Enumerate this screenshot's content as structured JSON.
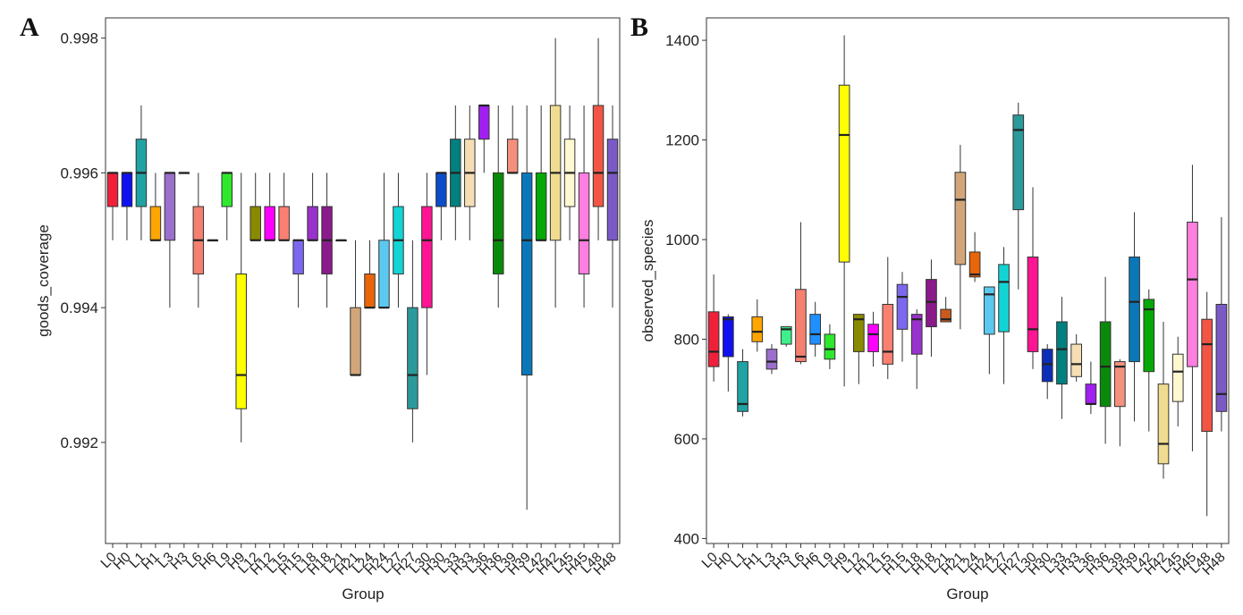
{
  "chart_data": [
    {
      "type": "boxplot",
      "panel_label": "A",
      "xlabel": "Group",
      "ylabel": "goods_coverage",
      "ylim": [
        0.9905,
        0.9983
      ],
      "yticks": [
        0.992,
        0.994,
        0.996,
        0.998
      ],
      "ytick_labels": [
        "0.992",
        "0.994",
        "0.996",
        "0.998"
      ],
      "categories": [
        "L0",
        "H0",
        "L1",
        "H1",
        "L3",
        "H3",
        "L6",
        "H6",
        "L9",
        "H9",
        "L12",
        "H12",
        "L15",
        "H15",
        "L18",
        "H18",
        "L21",
        "H21",
        "L24",
        "H24",
        "L27",
        "H27",
        "L30",
        "H30",
        "L33",
        "H33",
        "L36",
        "H36",
        "L39",
        "H39",
        "L42",
        "H42",
        "L45",
        "H45",
        "L48",
        "H48"
      ],
      "colors": [
        "#F0203A",
        "#1010F0",
        "#1FA3A3",
        "#FFA500",
        "#9B6FCC",
        "#F2F0A0",
        "#F58070",
        "#F5DEB3",
        "#2EE82E",
        "#FFFF00",
        "#8A8A00",
        "#FF00FF",
        "#FA8072",
        "#7B68EE",
        "#9932CC",
        "#8B1A8B",
        "#EEE8AA",
        "#D2A679",
        "#E8650A",
        "#5BC8F0",
        "#12D4D4",
        "#2C9A9A",
        "#FF1493",
        "#0B4DC8",
        "#00807F",
        "#F5DEB3",
        "#A020F0",
        "#0A8A0A",
        "#F4907C",
        "#0A78B8",
        "#06A806",
        "#F0DC90",
        "#FFF8D0",
        "#FF7FE0",
        "#F25545",
        "#7B5AC8"
      ],
      "boxes": [
        {
          "min": 0.995,
          "q1": 0.9955,
          "median": 0.996,
          "q3": 0.996,
          "max": 0.996
        },
        {
          "min": 0.995,
          "q1": 0.9955,
          "median": 0.996,
          "q3": 0.996,
          "max": 0.996
        },
        {
          "min": 0.995,
          "q1": 0.9955,
          "median": 0.996,
          "q3": 0.9965,
          "max": 0.997
        },
        {
          "min": 0.995,
          "q1": 0.995,
          "median": 0.995,
          "q3": 0.9955,
          "max": 0.996
        },
        {
          "min": 0.994,
          "q1": 0.995,
          "median": 0.996,
          "q3": 0.996,
          "max": 0.996
        },
        {
          "min": 0.996,
          "q1": 0.996,
          "median": 0.996,
          "q3": 0.996,
          "max": 0.996
        },
        {
          "min": 0.994,
          "q1": 0.9945,
          "median": 0.995,
          "q3": 0.9955,
          "max": 0.996
        },
        {
          "min": 0.995,
          "q1": 0.995,
          "median": 0.995,
          "q3": 0.995,
          "max": 0.995
        },
        {
          "min": 0.995,
          "q1": 0.9955,
          "median": 0.996,
          "q3": 0.996,
          "max": 0.996
        },
        {
          "min": 0.992,
          "q1": 0.9925,
          "median": 0.993,
          "q3": 0.9945,
          "max": 0.996
        },
        {
          "min": 0.995,
          "q1": 0.995,
          "median": 0.995,
          "q3": 0.9955,
          "max": 0.996
        },
        {
          "min": 0.995,
          "q1": 0.995,
          "median": 0.995,
          "q3": 0.9955,
          "max": 0.996
        },
        {
          "min": 0.995,
          "q1": 0.995,
          "median": 0.995,
          "q3": 0.9955,
          "max": 0.996
        },
        {
          "min": 0.994,
          "q1": 0.9945,
          "median": 0.995,
          "q3": 0.995,
          "max": 0.995
        },
        {
          "min": 0.995,
          "q1": 0.995,
          "median": 0.995,
          "q3": 0.9955,
          "max": 0.996
        },
        {
          "min": 0.994,
          "q1": 0.9945,
          "median": 0.995,
          "q3": 0.9955,
          "max": 0.996
        },
        {
          "min": 0.995,
          "q1": 0.995,
          "median": 0.995,
          "q3": 0.995,
          "max": 0.995
        },
        {
          "min": 0.993,
          "q1": 0.993,
          "median": 0.993,
          "q3": 0.994,
          "max": 0.995
        },
        {
          "min": 0.994,
          "q1": 0.994,
          "median": 0.994,
          "q3": 0.9945,
          "max": 0.995
        },
        {
          "min": 0.994,
          "q1": 0.994,
          "median": 0.994,
          "q3": 0.995,
          "max": 0.996
        },
        {
          "min": 0.994,
          "q1": 0.9945,
          "median": 0.995,
          "q3": 0.9955,
          "max": 0.996
        },
        {
          "min": 0.992,
          "q1": 0.9925,
          "median": 0.993,
          "q3": 0.994,
          "max": 0.995
        },
        {
          "min": 0.993,
          "q1": 0.994,
          "median": 0.995,
          "q3": 0.9955,
          "max": 0.996
        },
        {
          "min": 0.995,
          "q1": 0.9955,
          "median": 0.996,
          "q3": 0.996,
          "max": 0.996
        },
        {
          "min": 0.995,
          "q1": 0.9955,
          "median": 0.996,
          "q3": 0.9965,
          "max": 0.997
        },
        {
          "min": 0.995,
          "q1": 0.9955,
          "median": 0.996,
          "q3": 0.9965,
          "max": 0.997
        },
        {
          "min": 0.996,
          "q1": 0.9965,
          "median": 0.997,
          "q3": 0.997,
          "max": 0.997
        },
        {
          "min": 0.994,
          "q1": 0.9945,
          "median": 0.995,
          "q3": 0.996,
          "max": 0.997
        },
        {
          "min": 0.996,
          "q1": 0.996,
          "median": 0.996,
          "q3": 0.9965,
          "max": 0.997
        },
        {
          "min": 0.991,
          "q1": 0.993,
          "median": 0.995,
          "q3": 0.996,
          "max": 0.997
        },
        {
          "min": 0.995,
          "q1": 0.995,
          "median": 0.995,
          "q3": 0.996,
          "max": 0.997
        },
        {
          "min": 0.994,
          "q1": 0.995,
          "median": 0.996,
          "q3": 0.997,
          "max": 0.998
        },
        {
          "min": 0.995,
          "q1": 0.9955,
          "median": 0.996,
          "q3": 0.9965,
          "max": 0.997
        },
        {
          "min": 0.994,
          "q1": 0.9945,
          "median": 0.995,
          "q3": 0.996,
          "max": 0.997
        },
        {
          "min": 0.995,
          "q1": 0.9955,
          "median": 0.996,
          "q3": 0.997,
          "max": 0.998
        },
        {
          "min": 0.994,
          "q1": 0.995,
          "median": 0.996,
          "q3": 0.9965,
          "max": 0.997
        }
      ]
    },
    {
      "type": "boxplot",
      "panel_label": "B",
      "xlabel": "Group",
      "ylabel": "observed_species",
      "ylim": [
        390,
        1445
      ],
      "yticks": [
        400,
        600,
        800,
        1000,
        1200,
        1400
      ],
      "ytick_labels": [
        "400",
        "600",
        "800",
        "1000",
        "1200",
        "1400"
      ],
      "categories": [
        "L0",
        "H0",
        "L1",
        "H1",
        "L3",
        "H3",
        "L6",
        "H6",
        "L9",
        "H9",
        "L12",
        "H12",
        "L15",
        "H15",
        "L18",
        "H18",
        "L21",
        "H21",
        "L24",
        "H24",
        "L27",
        "H27",
        "L30",
        "H30",
        "L33",
        "H33",
        "L36",
        "H36",
        "L39",
        "H39",
        "L42",
        "H42",
        "L45",
        "H45",
        "L48",
        "H48"
      ],
      "colors": [
        "#F0203A",
        "#1010F0",
        "#1FA3A3",
        "#FFA500",
        "#9B6FCC",
        "#3EF08A",
        "#F58070",
        "#1E90FF",
        "#2EE82E",
        "#FFFF00",
        "#8A8A00",
        "#FF00FF",
        "#FA8072",
        "#7B68EE",
        "#9932CC",
        "#8B1A8B",
        "#C85A1E",
        "#D2A679",
        "#E8650A",
        "#5BC8F0",
        "#12D4D4",
        "#2C9A9A",
        "#FF1493",
        "#0B2DB8",
        "#00807F",
        "#F5DEB3",
        "#A020F0",
        "#0A8A0A",
        "#F4907C",
        "#0A78B8",
        "#06A806",
        "#F0DC90",
        "#FFF8D0",
        "#FF7FE0",
        "#F25545",
        "#7B5AC8"
      ],
      "boxes": [
        {
          "min": 715,
          "q1": 745,
          "median": 775,
          "q3": 855,
          "max": 930
        },
        {
          "min": 695,
          "q1": 765,
          "median": 840,
          "q3": 845,
          "max": 850
        },
        {
          "min": 645,
          "q1": 655,
          "median": 670,
          "q3": 755,
          "max": 780
        },
        {
          "min": 775,
          "q1": 795,
          "median": 815,
          "q3": 845,
          "max": 880
        },
        {
          "min": 730,
          "q1": 740,
          "median": 755,
          "q3": 780,
          "max": 790
        },
        {
          "min": 785,
          "q1": 790,
          "median": 820,
          "q3": 825,
          "max": 825
        },
        {
          "min": 750,
          "q1": 755,
          "median": 765,
          "q3": 900,
          "max": 1035
        },
        {
          "min": 765,
          "q1": 790,
          "median": 810,
          "q3": 850,
          "max": 875
        },
        {
          "min": 740,
          "q1": 760,
          "median": 780,
          "q3": 810,
          "max": 830
        },
        {
          "min": 705,
          "q1": 955,
          "median": 1210,
          "q3": 1310,
          "max": 1410
        },
        {
          "min": 710,
          "q1": 775,
          "median": 840,
          "q3": 850,
          "max": 850
        },
        {
          "min": 745,
          "q1": 775,
          "median": 810,
          "q3": 830,
          "max": 855
        },
        {
          "min": 720,
          "q1": 750,
          "median": 775,
          "q3": 870,
          "max": 965
        },
        {
          "min": 755,
          "q1": 820,
          "median": 885,
          "q3": 910,
          "max": 935
        },
        {
          "min": 700,
          "q1": 770,
          "median": 840,
          "q3": 850,
          "max": 860
        },
        {
          "min": 765,
          "q1": 825,
          "median": 875,
          "q3": 920,
          "max": 960
        },
        {
          "min": 835,
          "q1": 835,
          "median": 840,
          "q3": 860,
          "max": 885
        },
        {
          "min": 820,
          "q1": 950,
          "median": 1080,
          "q3": 1135,
          "max": 1190
        },
        {
          "min": 915,
          "q1": 925,
          "median": 930,
          "q3": 975,
          "max": 1015
        },
        {
          "min": 730,
          "q1": 810,
          "median": 890,
          "q3": 905,
          "max": 905
        },
        {
          "min": 710,
          "q1": 815,
          "median": 915,
          "q3": 950,
          "max": 985
        },
        {
          "min": 900,
          "q1": 1060,
          "median": 1220,
          "q3": 1250,
          "max": 1275
        },
        {
          "min": 740,
          "q1": 775,
          "median": 820,
          "q3": 965,
          "max": 1105
        },
        {
          "min": 680,
          "q1": 715,
          "median": 750,
          "q3": 780,
          "max": 790
        },
        {
          "min": 640,
          "q1": 710,
          "median": 780,
          "q3": 835,
          "max": 885
        },
        {
          "min": 715,
          "q1": 725,
          "median": 750,
          "q3": 790,
          "max": 810
        },
        {
          "min": 650,
          "q1": 670,
          "median": 670,
          "q3": 710,
          "max": 755
        },
        {
          "min": 590,
          "q1": 665,
          "median": 745,
          "q3": 835,
          "max": 925
        },
        {
          "min": 585,
          "q1": 665,
          "median": 745,
          "q3": 755,
          "max": 760
        },
        {
          "min": 635,
          "q1": 755,
          "median": 875,
          "q3": 965,
          "max": 1055
        },
        {
          "min": 615,
          "q1": 735,
          "median": 860,
          "q3": 880,
          "max": 900
        },
        {
          "min": 520,
          "q1": 550,
          "median": 590,
          "q3": 710,
          "max": 835
        },
        {
          "min": 625,
          "q1": 675,
          "median": 735,
          "q3": 770,
          "max": 805
        },
        {
          "min": 575,
          "q1": 745,
          "median": 920,
          "q3": 1035,
          "max": 1150
        },
        {
          "min": 445,
          "q1": 615,
          "median": 790,
          "q3": 840,
          "max": 895
        },
        {
          "min": 615,
          "q1": 655,
          "median": 690,
          "q3": 870,
          "max": 1045
        }
      ]
    }
  ]
}
